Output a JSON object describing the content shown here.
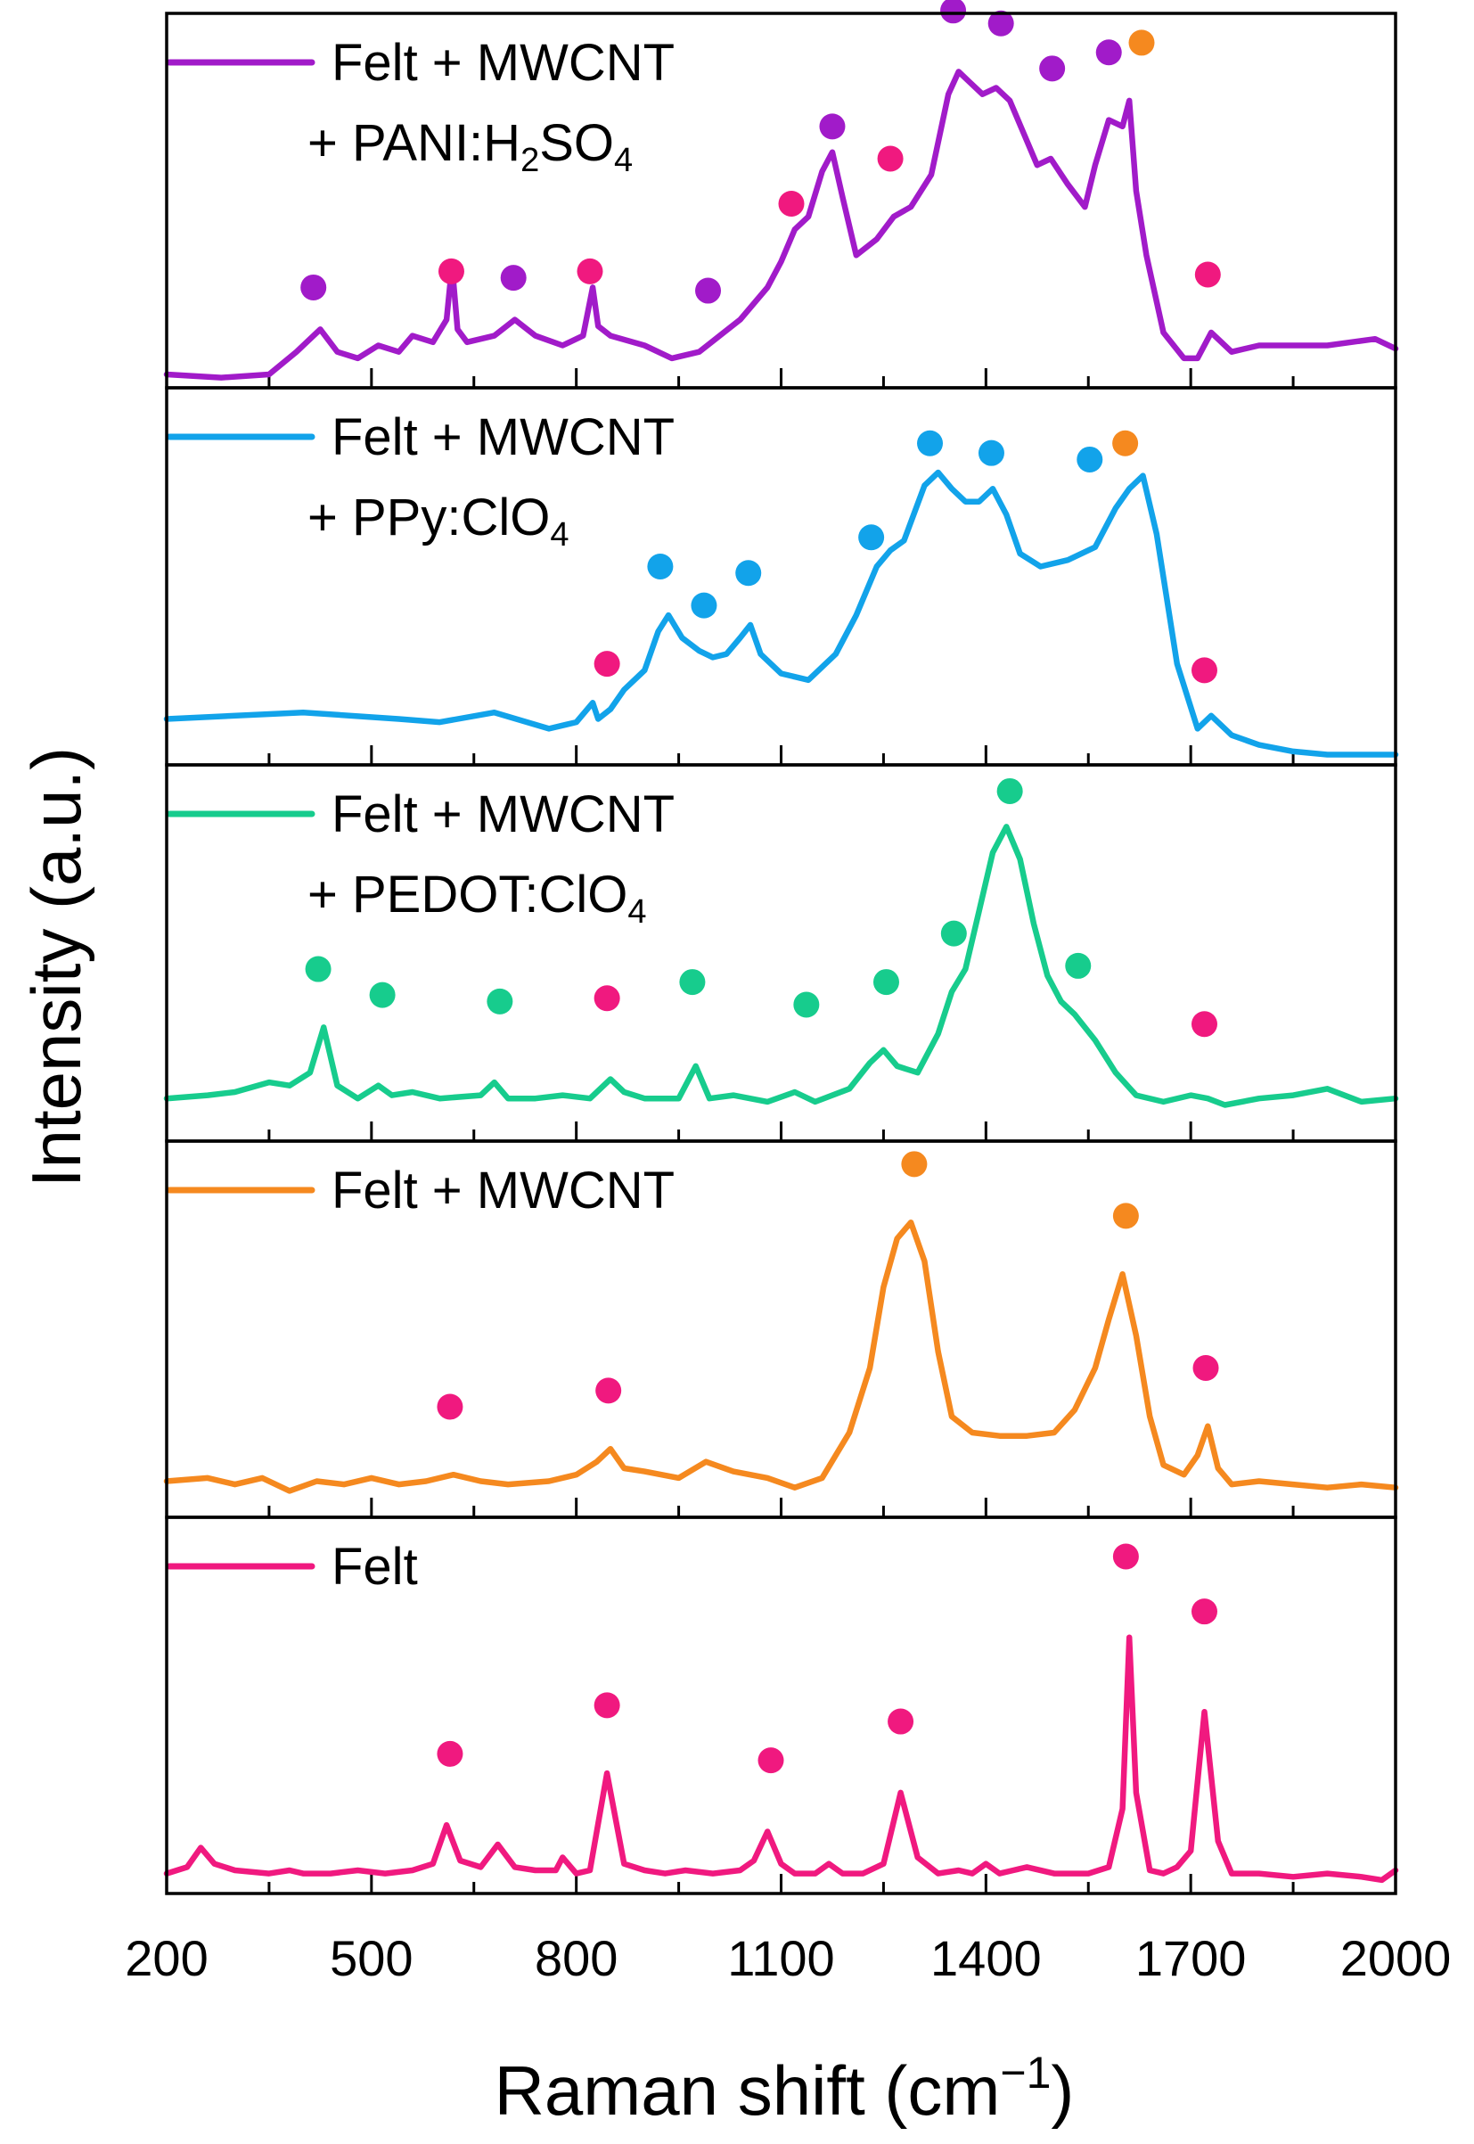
{
  "chart_data": {
    "type": "line",
    "layout": "stacked-panels",
    "xlabel": "Raman shift (cm",
    "xlabel_sup": "−1",
    "xlabel_close": ")",
    "ylabel": "Intensity (a.u.)",
    "xlim": [
      200,
      2000
    ],
    "x_ticks": [
      200,
      500,
      800,
      1100,
      1400,
      1700,
      2000
    ],
    "x_tick_labels": [
      "200",
      "500",
      "800",
      "1100",
      "1400",
      "1700",
      "2000"
    ],
    "y_ticks_shown": false,
    "panels": [
      {
        "name": "Felt + MWCNT + PANI:H2SO4",
        "legend_line1": "Felt + MWCNT",
        "legend_line2_parts": [
          {
            "t": "+ PANI:H",
            "sub": false
          },
          {
            "t": "2",
            "sub": true
          },
          {
            "t": "SO",
            "sub": false
          },
          {
            "t": "4",
            "sub": true
          }
        ],
        "color": "#a11bc9",
        "x": [
          200,
          280,
          350,
          390,
          425,
          450,
          480,
          510,
          540,
          560,
          590,
          610,
          618,
          626,
          640,
          680,
          710,
          740,
          780,
          810,
          824,
          832,
          850,
          900,
          940,
          980,
          1010,
          1040,
          1080,
          1100,
          1120,
          1140,
          1160,
          1175,
          1190,
          1210,
          1240,
          1265,
          1290,
          1320,
          1345,
          1360,
          1375,
          1395,
          1415,
          1435,
          1455,
          1475,
          1495,
          1520,
          1545,
          1560,
          1580,
          1600,
          1610,
          1620,
          1635,
          1660,
          1690,
          1710,
          1730,
          1760,
          1800,
          1900,
          1970,
          2000
        ],
        "y": [
          0.03,
          0.02,
          0.03,
          0.1,
          0.17,
          0.1,
          0.08,
          0.12,
          0.1,
          0.15,
          0.13,
          0.2,
          0.37,
          0.17,
          0.13,
          0.15,
          0.2,
          0.15,
          0.12,
          0.15,
          0.3,
          0.18,
          0.15,
          0.12,
          0.08,
          0.1,
          0.15,
          0.2,
          0.3,
          0.38,
          0.48,
          0.52,
          0.66,
          0.72,
          0.58,
          0.4,
          0.45,
          0.52,
          0.55,
          0.65,
          0.9,
          0.97,
          0.94,
          0.9,
          0.92,
          0.88,
          0.78,
          0.68,
          0.7,
          0.62,
          0.55,
          0.68,
          0.82,
          0.8,
          0.88,
          0.6,
          0.4,
          0.16,
          0.08,
          0.08,
          0.16,
          0.1,
          0.12,
          0.12,
          0.14,
          0.11
        ],
        "markers": [
          {
            "x": 415,
            "y": 0.3,
            "color": "#a11bc9"
          },
          {
            "x": 617,
            "y": 0.35,
            "color": "#f0197f"
          },
          {
            "x": 708,
            "y": 0.33,
            "color": "#a11bc9"
          },
          {
            "x": 820,
            "y": 0.35,
            "color": "#f0197f"
          },
          {
            "x": 993,
            "y": 0.29,
            "color": "#a11bc9"
          },
          {
            "x": 1115,
            "y": 0.56,
            "color": "#f0197f"
          },
          {
            "x": 1175,
            "y": 0.8,
            "color": "#a11bc9"
          },
          {
            "x": 1260,
            "y": 0.7,
            "color": "#f0197f"
          },
          {
            "x": 1352,
            "y": 1.16,
            "color": "#a11bc9"
          },
          {
            "x": 1422,
            "y": 1.12,
            "color": "#a11bc9"
          },
          {
            "x": 1497,
            "y": 0.98,
            "color": "#a11bc9"
          },
          {
            "x": 1580,
            "y": 1.03,
            "color": "#a11bc9"
          },
          {
            "x": 1628,
            "y": 1.06,
            "color": "#f5891f"
          },
          {
            "x": 1725,
            "y": 0.34,
            "color": "#f0197f"
          }
        ]
      },
      {
        "name": "Felt + MWCNT + PPy:ClO4",
        "legend_line1": "Felt + MWCNT",
        "legend_line2_parts": [
          {
            "t": "+ PPy:ClO",
            "sub": false
          },
          {
            "t": "4",
            "sub": true
          }
        ],
        "color": "#12a3ea",
        "x": [
          200,
          400,
          540,
          600,
          680,
          760,
          800,
          824,
          832,
          850,
          870,
          900,
          920,
          935,
          955,
          980,
          1000,
          1020,
          1040,
          1055,
          1070,
          1100,
          1140,
          1180,
          1210,
          1240,
          1260,
          1280,
          1310,
          1330,
          1350,
          1370,
          1390,
          1410,
          1430,
          1450,
          1480,
          1520,
          1560,
          1590,
          1610,
          1630,
          1650,
          1680,
          1710,
          1730,
          1760,
          1800,
          1850,
          1900,
          1950,
          2000
        ],
        "y": [
          0.13,
          0.15,
          0.13,
          0.12,
          0.15,
          0.1,
          0.12,
          0.18,
          0.13,
          0.16,
          0.22,
          0.28,
          0.4,
          0.45,
          0.38,
          0.34,
          0.32,
          0.33,
          0.38,
          0.42,
          0.33,
          0.27,
          0.25,
          0.33,
          0.45,
          0.6,
          0.65,
          0.68,
          0.85,
          0.89,
          0.84,
          0.8,
          0.8,
          0.84,
          0.76,
          0.64,
          0.6,
          0.62,
          0.66,
          0.78,
          0.84,
          0.88,
          0.7,
          0.3,
          0.1,
          0.14,
          0.08,
          0.05,
          0.03,
          0.02,
          0.02,
          0.02
        ],
        "markers": [
          {
            "x": 845,
            "y": 0.3,
            "color": "#f0197f"
          },
          {
            "x": 923,
            "y": 0.6,
            "color": "#12a3ea"
          },
          {
            "x": 987,
            "y": 0.48,
            "color": "#12a3ea"
          },
          {
            "x": 1052,
            "y": 0.58,
            "color": "#12a3ea"
          },
          {
            "x": 1232,
            "y": 0.69,
            "color": "#12a3ea"
          },
          {
            "x": 1318,
            "y": 0.98,
            "color": "#12a3ea"
          },
          {
            "x": 1408,
            "y": 0.95,
            "color": "#12a3ea"
          },
          {
            "x": 1552,
            "y": 0.93,
            "color": "#12a3ea"
          },
          {
            "x": 1604,
            "y": 0.98,
            "color": "#f5891f"
          },
          {
            "x": 1720,
            "y": 0.28,
            "color": "#f0197f"
          }
        ]
      },
      {
        "name": "Felt + MWCNT + PEDOT:ClO4",
        "legend_line1": "Felt + MWCNT",
        "legend_line2_parts": [
          {
            "t": "+ PEDOT:ClO",
            "sub": false
          },
          {
            "t": "4",
            "sub": true
          }
        ],
        "color": "#17cc8d",
        "x": [
          200,
          260,
          300,
          350,
          380,
          410,
          430,
          450,
          480,
          510,
          530,
          560,
          600,
          660,
          680,
          700,
          740,
          780,
          820,
          850,
          870,
          900,
          950,
          975,
          995,
          1030,
          1080,
          1120,
          1150,
          1200,
          1230,
          1250,
          1270,
          1300,
          1330,
          1350,
          1370,
          1390,
          1410,
          1430,
          1450,
          1470,
          1490,
          1510,
          1530,
          1560,
          1590,
          1620,
          1660,
          1700,
          1725,
          1750,
          1800,
          1850,
          1900,
          1950,
          2000
        ],
        "y": [
          0.12,
          0.13,
          0.14,
          0.17,
          0.16,
          0.2,
          0.34,
          0.16,
          0.12,
          0.16,
          0.13,
          0.14,
          0.12,
          0.13,
          0.17,
          0.12,
          0.12,
          0.13,
          0.12,
          0.18,
          0.14,
          0.12,
          0.12,
          0.22,
          0.12,
          0.13,
          0.11,
          0.14,
          0.11,
          0.15,
          0.23,
          0.27,
          0.22,
          0.2,
          0.32,
          0.45,
          0.52,
          0.7,
          0.88,
          0.96,
          0.86,
          0.66,
          0.5,
          0.42,
          0.38,
          0.3,
          0.2,
          0.13,
          0.11,
          0.13,
          0.12,
          0.1,
          0.12,
          0.13,
          0.15,
          0.11,
          0.12
        ],
        "markers": [
          {
            "x": 422,
            "y": 0.52,
            "color": "#17cc8d"
          },
          {
            "x": 516,
            "y": 0.44,
            "color": "#17cc8d"
          },
          {
            "x": 688,
            "y": 0.42,
            "color": "#17cc8d"
          },
          {
            "x": 845,
            "y": 0.43,
            "color": "#f0197f"
          },
          {
            "x": 970,
            "y": 0.48,
            "color": "#17cc8d"
          },
          {
            "x": 1137,
            "y": 0.41,
            "color": "#17cc8d"
          },
          {
            "x": 1254,
            "y": 0.48,
            "color": "#17cc8d"
          },
          {
            "x": 1353,
            "y": 0.63,
            "color": "#17cc8d"
          },
          {
            "x": 1435,
            "y": 1.07,
            "color": "#17cc8d"
          },
          {
            "x": 1535,
            "y": 0.53,
            "color": "#17cc8d"
          },
          {
            "x": 1720,
            "y": 0.35,
            "color": "#f0197f"
          }
        ]
      },
      {
        "name": "Felt + MWCNT",
        "legend_line1": "Felt + MWCNT",
        "legend_line2_parts": [],
        "color": "#f5891f",
        "x": [
          200,
          260,
          300,
          340,
          380,
          420,
          460,
          500,
          540,
          580,
          620,
          660,
          700,
          760,
          800,
          830,
          850,
          870,
          900,
          950,
          990,
          1030,
          1080,
          1120,
          1160,
          1200,
          1230,
          1250,
          1270,
          1290,
          1310,
          1330,
          1350,
          1380,
          1420,
          1460,
          1500,
          1530,
          1560,
          1580,
          1600,
          1620,
          1640,
          1660,
          1690,
          1710,
          1725,
          1740,
          1760,
          1800,
          1850,
          1900,
          1950,
          2000
        ],
        "y": [
          0.1,
          0.11,
          0.09,
          0.11,
          0.07,
          0.1,
          0.09,
          0.11,
          0.09,
          0.1,
          0.12,
          0.1,
          0.09,
          0.1,
          0.12,
          0.16,
          0.2,
          0.14,
          0.13,
          0.11,
          0.16,
          0.13,
          0.11,
          0.08,
          0.11,
          0.25,
          0.45,
          0.7,
          0.85,
          0.9,
          0.78,
          0.5,
          0.3,
          0.25,
          0.24,
          0.24,
          0.25,
          0.32,
          0.45,
          0.6,
          0.74,
          0.55,
          0.3,
          0.15,
          0.12,
          0.18,
          0.27,
          0.14,
          0.09,
          0.1,
          0.09,
          0.08,
          0.09,
          0.08
        ],
        "markers": [
          {
            "x": 615,
            "y": 0.33,
            "color": "#f0197f"
          },
          {
            "x": 847,
            "y": 0.38,
            "color": "#f0197f"
          },
          {
            "x": 1295,
            "y": 1.08,
            "color": "#f5891f"
          },
          {
            "x": 1605,
            "y": 0.92,
            "color": "#f5891f"
          },
          {
            "x": 1722,
            "y": 0.45,
            "color": "#f0197f"
          }
        ]
      },
      {
        "name": "Felt",
        "legend_line1": "Felt",
        "legend_line2_parts": [],
        "color": "#f0197f",
        "x": [
          200,
          230,
          250,
          270,
          300,
          350,
          380,
          400,
          440,
          480,
          520,
          560,
          590,
          610,
          630,
          660,
          685,
          710,
          740,
          770,
          780,
          800,
          820,
          845,
          870,
          900,
          930,
          960,
          1000,
          1040,
          1060,
          1080,
          1100,
          1120,
          1150,
          1170,
          1190,
          1220,
          1250,
          1275,
          1300,
          1330,
          1360,
          1380,
          1400,
          1420,
          1440,
          1460,
          1500,
          1550,
          1580,
          1600,
          1610,
          1620,
          1640,
          1660,
          1680,
          1700,
          1720,
          1740,
          1760,
          1800,
          1850,
          1900,
          1950,
          1980,
          2000
        ],
        "y": [
          0.05,
          0.07,
          0.13,
          0.08,
          0.06,
          0.05,
          0.06,
          0.05,
          0.05,
          0.06,
          0.05,
          0.06,
          0.08,
          0.2,
          0.09,
          0.07,
          0.14,
          0.07,
          0.06,
          0.06,
          0.1,
          0.05,
          0.06,
          0.36,
          0.08,
          0.06,
          0.05,
          0.06,
          0.05,
          0.06,
          0.09,
          0.18,
          0.08,
          0.05,
          0.05,
          0.08,
          0.05,
          0.05,
          0.08,
          0.3,
          0.1,
          0.05,
          0.06,
          0.05,
          0.08,
          0.05,
          0.06,
          0.07,
          0.05,
          0.05,
          0.07,
          0.25,
          0.78,
          0.3,
          0.06,
          0.05,
          0.07,
          0.12,
          0.55,
          0.15,
          0.05,
          0.05,
          0.04,
          0.05,
          0.04,
          0.03,
          0.06
        ],
        "markers": [
          {
            "x": 615,
            "y": 0.42,
            "color": "#f0197f"
          },
          {
            "x": 845,
            "y": 0.57,
            "color": "#f0197f"
          },
          {
            "x": 1085,
            "y": 0.4,
            "color": "#f0197f"
          },
          {
            "x": 1275,
            "y": 0.52,
            "color": "#f0197f"
          },
          {
            "x": 1605,
            "y": 1.03,
            "color": "#f0197f"
          },
          {
            "x": 1720,
            "y": 0.86,
            "color": "#f0197f"
          }
        ]
      }
    ]
  }
}
